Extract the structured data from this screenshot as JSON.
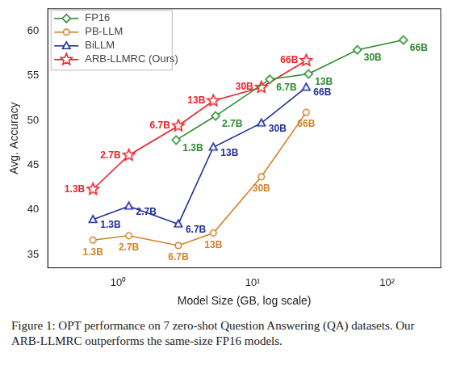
{
  "chart_data": {
    "type": "line",
    "x_label": "Model Size (GB, log scale)",
    "y_label": "Avg. Accuracy",
    "log": "x",
    "grid": false,
    "legend": "upper left",
    "xlim": [
      0.3,
      250
    ],
    "xticks": [
      {
        "value": 1,
        "label": "10⁰"
      },
      {
        "value": 10,
        "label": "10¹"
      },
      {
        "value": 100,
        "label": "10²"
      }
    ],
    "ylim": [
      33.5,
      62.5
    ],
    "yticks": [
      35,
      40,
      45,
      50,
      55,
      60
    ],
    "series": [
      {
        "name": "FP16",
        "color": "#2e8b2e",
        "marker": "diamond",
        "x": [
          2.7,
          5.3,
          13.4,
          26,
          60,
          132
        ],
        "values": [
          47.8,
          50.5,
          54.6,
          55.2,
          57.9,
          59.0
        ],
        "point_labels": [
          "1.3B",
          "2.7B",
          "6.7B",
          "13B",
          "30B",
          "66B"
        ]
      },
      {
        "name": "PB-LLM",
        "color": "#d2822a",
        "marker": "circle",
        "x": [
          0.65,
          1.2,
          2.8,
          5.1,
          11.6,
          25
        ],
        "values": [
          36.6,
          37.1,
          36.0,
          37.4,
          43.7,
          50.9
        ],
        "point_labels": [
          "1.3B",
          "2.7B",
          "6.7B",
          "13B",
          "30B",
          "66B"
        ]
      },
      {
        "name": "BiLLM",
        "color": "#1f2f96",
        "marker": "triangle",
        "x": [
          0.65,
          1.2,
          2.8,
          5.1,
          11.6,
          25
        ],
        "values": [
          38.9,
          40.4,
          38.4,
          47.0,
          49.7,
          53.7
        ],
        "point_labels": [
          "1.3B",
          "2.7B",
          "6.7B",
          "13B",
          "30B",
          "66B"
        ]
      },
      {
        "name": "ARB-LLMRC (Ours)",
        "color": "#e8252b",
        "marker": "star",
        "x": [
          0.65,
          1.2,
          2.8,
          5.1,
          11.6,
          25
        ],
        "values": [
          42.3,
          46.1,
          49.4,
          52.2,
          53.7,
          56.7
        ],
        "point_labels": [
          "1.3B",
          "2.7B",
          "6.7B",
          "13B",
          "30B",
          "66B"
        ]
      }
    ],
    "caption": "Figure 1: OPT performance on 7 zero-shot Question Answering (QA) datasets. Our ARB-LLMRC outperforms the same-size FP16 models."
  }
}
